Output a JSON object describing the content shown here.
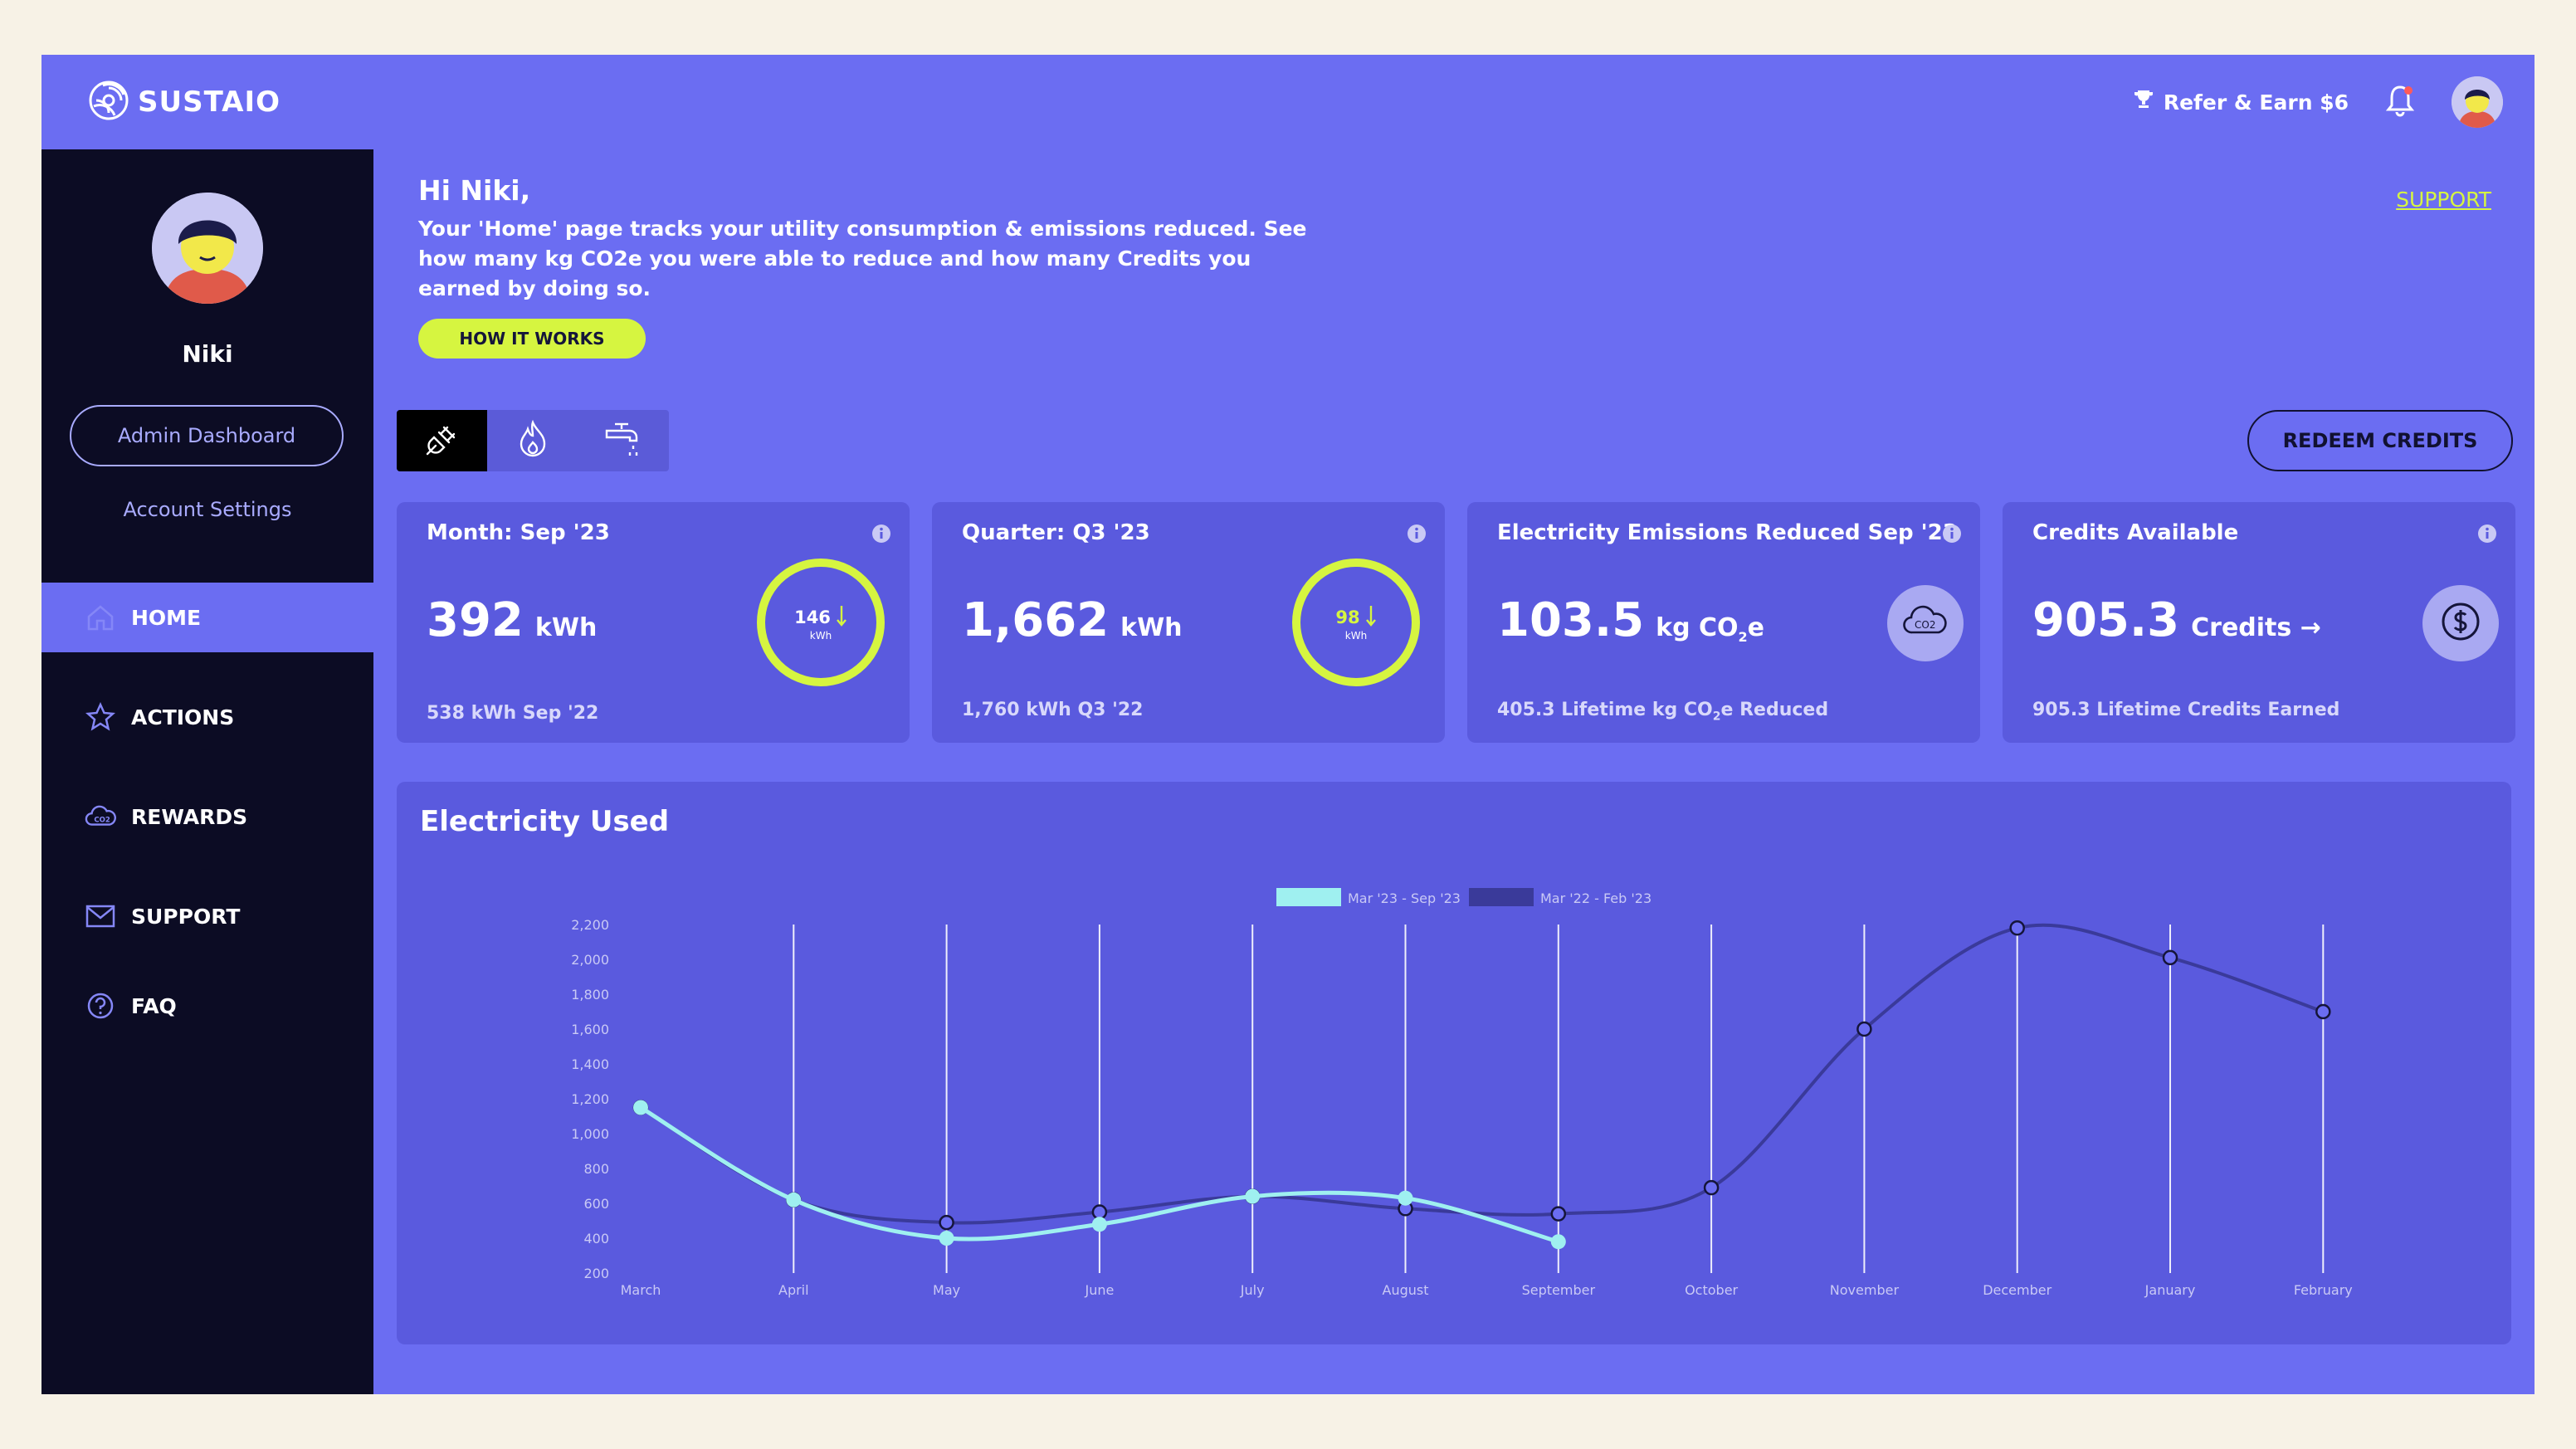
{
  "header": {
    "logo_text": "SUSTAIO",
    "refer_label": "Refer & Earn $6",
    "icons": [
      "trophy-icon",
      "bell-icon",
      "avatar"
    ]
  },
  "sidebar": {
    "user_name": "Niki",
    "admin_label": "Admin Dashboard",
    "account_label": "Account Settings",
    "nav": [
      {
        "label": "HOME",
        "icon": "home-icon",
        "active": true
      },
      {
        "label": "ACTIONS",
        "icon": "star-icon"
      },
      {
        "label": "REWARDS",
        "icon": "co2-cloud-icon"
      },
      {
        "label": "SUPPORT",
        "icon": "mail-icon"
      },
      {
        "label": "FAQ",
        "icon": "question-icon"
      }
    ]
  },
  "main": {
    "greeting": "Hi Niki,",
    "intro": "Your 'Home' page tracks your utility consumption & emissions reduced. See how many kg CO2e you were able to reduce and how many Credits you earned by doing so.",
    "how_it_works": "HOW IT WORKS",
    "support_link": "SUPPORT",
    "redeem_label": "REDEEM CREDITS",
    "utility_tabs": [
      {
        "icon": "plug-icon",
        "active": true
      },
      {
        "icon": "flame-icon"
      },
      {
        "icon": "faucet-icon"
      }
    ]
  },
  "cards": [
    {
      "title": "Month: Sep '23",
      "value": "392",
      "unit": "kWh",
      "ring_value": "146",
      "ring_unit": "kWh",
      "sub": "538 kWh Sep '22"
    },
    {
      "title": "Quarter: Q3 '23",
      "value": "1,662",
      "unit": "kWh",
      "ring_value": "98",
      "ring_unit": "kWh",
      "sub": "1,760 kWh Q3 '22"
    },
    {
      "title": "Electricity Emissions Reduced Sep '23",
      "value": "103.5",
      "unit_pre": "kg CO",
      "unit_sub": "2",
      "unit_post": "e",
      "sub_pre": "405.3 Lifetime kg CO",
      "sub_sub": "2",
      "sub_post": "e Reduced",
      "icon": "co2-cloud-icon"
    },
    {
      "title": "Credits Available",
      "value": "905.3",
      "unit": "Credits →",
      "sub": "905.3 Lifetime Credits Earned",
      "icon": "dollar-coin-icon"
    }
  ],
  "chart_data": {
    "type": "line",
    "title": "Electricity Used",
    "categories": [
      "March",
      "April",
      "May",
      "June",
      "July",
      "August",
      "September",
      "October",
      "November",
      "December",
      "January",
      "February"
    ],
    "series": [
      {
        "name": "Mar '23 - Sep '23",
        "color": "#9ff0f0",
        "values": [
          1150,
          620,
          400,
          480,
          640,
          630,
          380,
          null,
          null,
          null,
          null,
          null
        ]
      },
      {
        "name": "Mar '22 - Feb '23",
        "color": "#3a3a9a",
        "values": [
          1150,
          620,
          490,
          550,
          640,
          570,
          540,
          690,
          1600,
          2180,
          2010,
          1700
        ]
      }
    ],
    "yticks": [
      "2,200",
      "2,000",
      "1,800",
      "1,600",
      "1,400",
      "1,200",
      "1,000",
      "800",
      "600",
      "400",
      "200"
    ],
    "ylim": [
      200,
      2200
    ],
    "legend_position": "top-center"
  }
}
